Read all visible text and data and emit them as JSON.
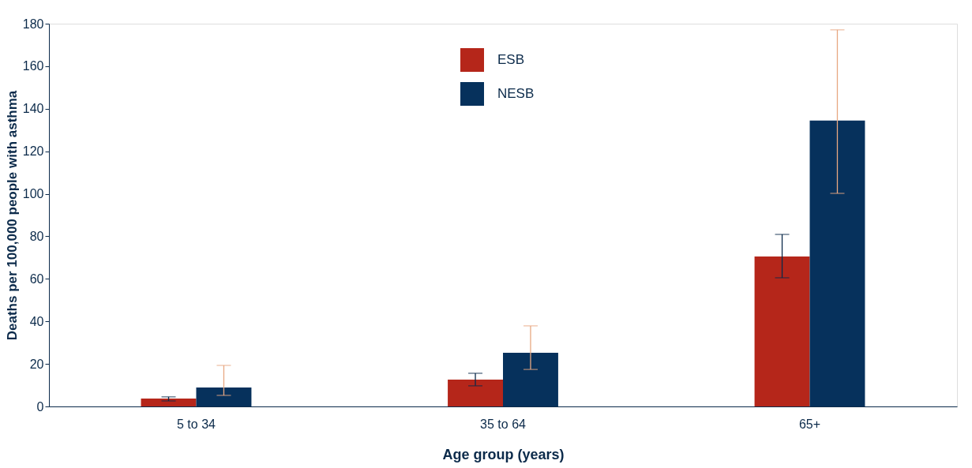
{
  "chart_data": {
    "type": "bar",
    "xlabel": "Age group (years)",
    "ylabel": "Deaths  per 100,000 people with asthma",
    "categories": [
      "5 to 34",
      "35 to 64",
      "65+"
    ],
    "series": [
      {
        "name": "ESB",
        "color": "#b5261a",
        "values": [
          3.7,
          12.6,
          70.5
        ],
        "errors": [
          [
            2.6,
            4.5
          ],
          [
            9.7,
            15.6
          ],
          [
            60.5,
            80.9
          ]
        ]
      },
      {
        "name": "NESB",
        "color": "#06315c",
        "values": [
          8.9,
          25.2,
          134.4
        ],
        "errors": [
          [
            5.2,
            19.3
          ],
          [
            17.4,
            37.9
          ],
          [
            100.2,
            177.1
          ]
        ]
      }
    ],
    "ylim": [
      0,
      180
    ],
    "yticks": [
      0,
      20,
      40,
      60,
      80,
      100,
      120,
      140,
      160,
      180
    ],
    "grid": false,
    "legend": "top"
  }
}
